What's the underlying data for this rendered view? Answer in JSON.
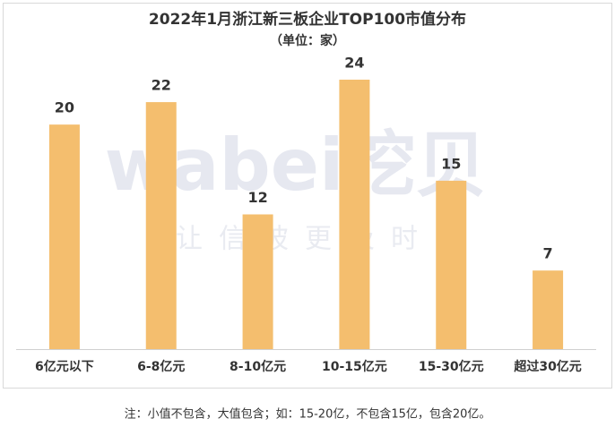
{
  "chart_data": {
    "type": "bar",
    "title": "2022年1月浙江新三板企业TOP100市值分布",
    "subtitle": "（单位：家）",
    "categories": [
      "6亿元以下",
      "6-8亿元",
      "8-10亿元",
      "10-15亿元",
      "15-30亿元",
      "超过30亿元"
    ],
    "values": [
      20,
      22,
      12,
      24,
      15,
      7
    ],
    "color": "#f4be6e",
    "watermark": {
      "logo": "wabei挖贝",
      "slogan": "让信披更及时"
    },
    "note": "注：小值不包含，大值包含；如：15-20亿，不包含15亿，包含20亿。"
  }
}
